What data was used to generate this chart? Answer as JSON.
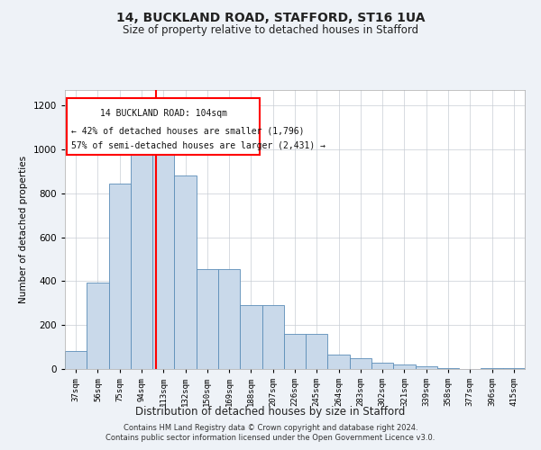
{
  "title1": "14, BUCKLAND ROAD, STAFFORD, ST16 1UA",
  "title2": "Size of property relative to detached houses in Stafford",
  "xlabel": "Distribution of detached houses by size in Stafford",
  "ylabel": "Number of detached properties",
  "categories": [
    "37sqm",
    "56sqm",
    "75sqm",
    "94sqm",
    "113sqm",
    "132sqm",
    "150sqm",
    "169sqm",
    "188sqm",
    "207sqm",
    "226sqm",
    "245sqm",
    "264sqm",
    "283sqm",
    "302sqm",
    "321sqm",
    "339sqm",
    "358sqm",
    "377sqm",
    "396sqm",
    "415sqm"
  ],
  "values": [
    80,
    395,
    845,
    975,
    975,
    880,
    455,
    455,
    290,
    290,
    160,
    160,
    65,
    50,
    30,
    22,
    12,
    5,
    0,
    5,
    5
  ],
  "bar_color": "#c9d9ea",
  "bar_edge_color": "#5b8db8",
  "red_line_x": 3.65,
  "annotation_line1": "14 BUCKLAND ROAD: 104sqm",
  "annotation_line2": "← 42% of detached houses are smaller (1,796)",
  "annotation_line3": "57% of semi-detached houses are larger (2,431) →",
  "footer1": "Contains HM Land Registry data © Crown copyright and database right 2024.",
  "footer2": "Contains public sector information licensed under the Open Government Licence v3.0.",
  "ylim": [
    0,
    1270
  ],
  "yticks": [
    0,
    200,
    400,
    600,
    800,
    1000,
    1200
  ],
  "background_color": "#eef2f7",
  "plot_bg_color": "#ffffff",
  "grid_color": "#c8cdd4"
}
